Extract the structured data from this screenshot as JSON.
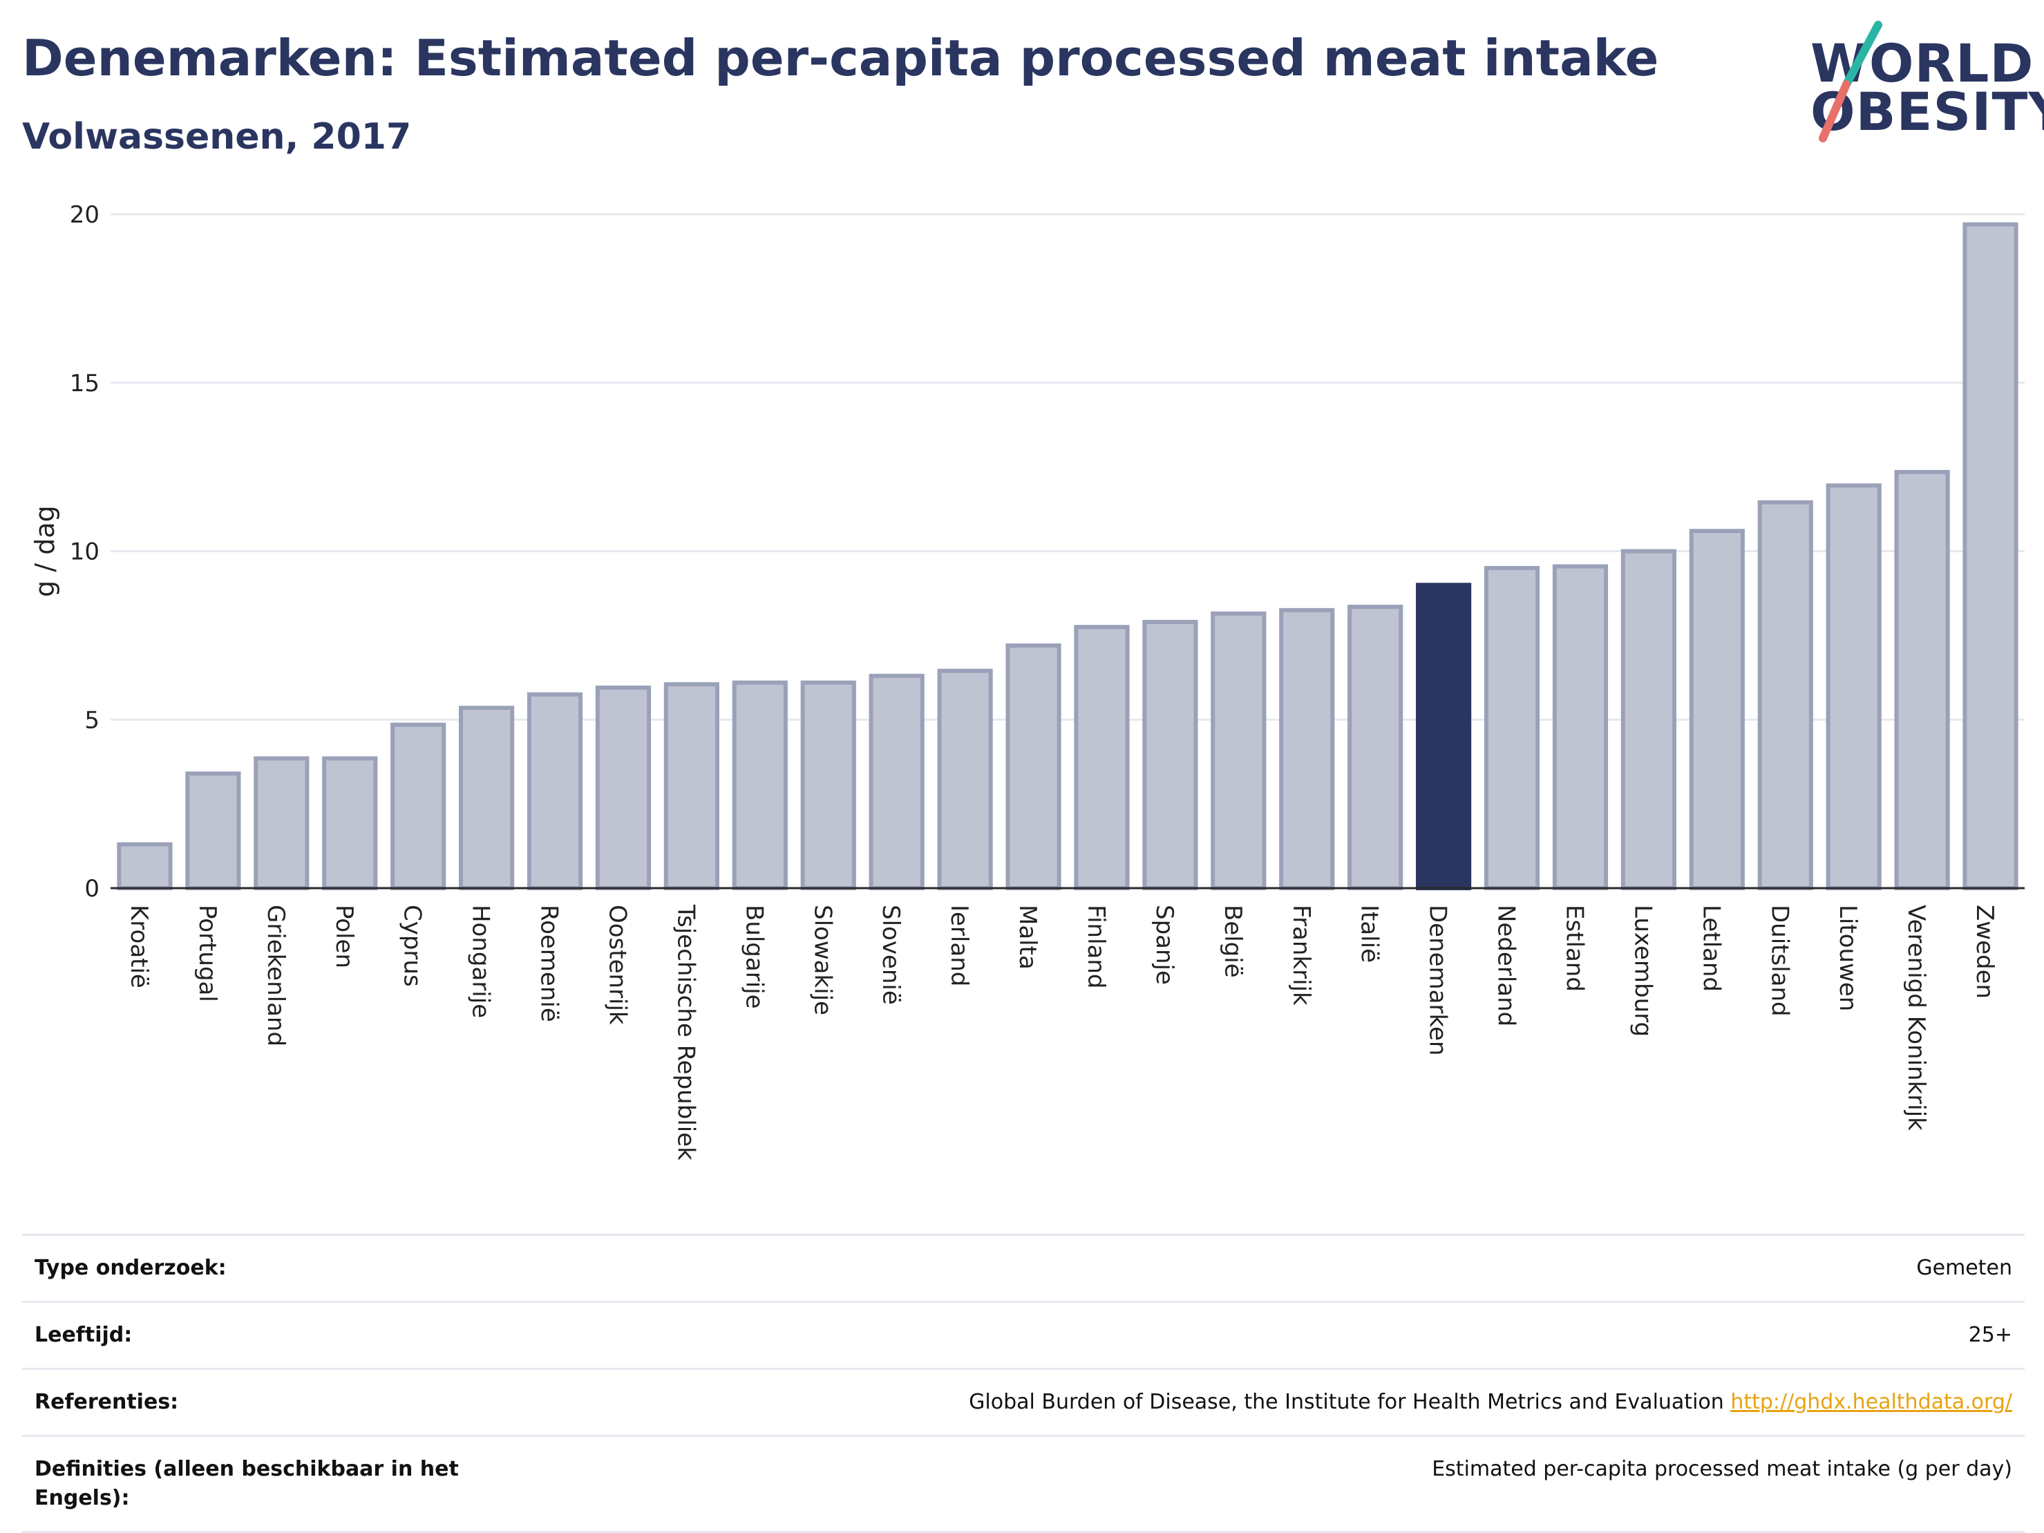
{
  "header": {
    "title": "Denemarken: Estimated per-capita processed meat intake",
    "subtitle": "Volwassenen, 2017"
  },
  "logo": {
    "line1": "WORLD",
    "line2": "OBESITY",
    "colors": {
      "text": "#2a3560",
      "slash_top": "#2bb5a5",
      "slash_bottom": "#e8706a"
    }
  },
  "chart_data": {
    "type": "bar",
    "title": "",
    "xlabel": "",
    "ylabel": "g / dag",
    "ylim": [
      0,
      20
    ],
    "yticks": [
      0,
      5,
      10,
      15,
      20
    ],
    "grid": true,
    "highlight": "Denemarken",
    "colors": {
      "bar": "#c0c4d2",
      "bar_border": "#9aa1b8",
      "highlight": "#2a3560"
    },
    "categories": [
      "Kroatië",
      "Portugal",
      "Griekenland",
      "Polen",
      "Cyprus",
      "Hongarije",
      "Roemenië",
      "Oostenrijk",
      "Tsjechische Republiek",
      "Bulgarije",
      "Slowakije",
      "Slovenië",
      "Ierland",
      "Malta",
      "Finland",
      "Spanje",
      "België",
      "Frankrijk",
      "Italië",
      "Denemarken",
      "Nederland",
      "Estland",
      "Luxemburg",
      "Letland",
      "Duitsland",
      "Litouwen",
      "Verenigd Koninkrijk",
      "Zweden"
    ],
    "values": [
      1.3,
      3.4,
      3.85,
      3.85,
      4.85,
      5.35,
      5.75,
      5.95,
      6.05,
      6.1,
      6.1,
      6.3,
      6.45,
      7.2,
      7.75,
      7.9,
      8.15,
      8.25,
      8.35,
      9.0,
      9.5,
      9.55,
      10.0,
      10.6,
      11.45,
      11.95,
      12.35,
      19.7
    ]
  },
  "info": {
    "rows": [
      {
        "label": "Type onderzoek:",
        "value": "Gemeten"
      },
      {
        "label": "Leeftijd:",
        "value": "25+"
      },
      {
        "label": "Referenties:",
        "value": "Global Burden of Disease, the Institute for Health Metrics and Evaluation ",
        "link": "http://ghdx.healthdata.org/"
      },
      {
        "label": "Definities (alleen beschikbaar in het Engels):",
        "value": "Estimated per-capita processed meat intake (g per day)"
      }
    ]
  }
}
